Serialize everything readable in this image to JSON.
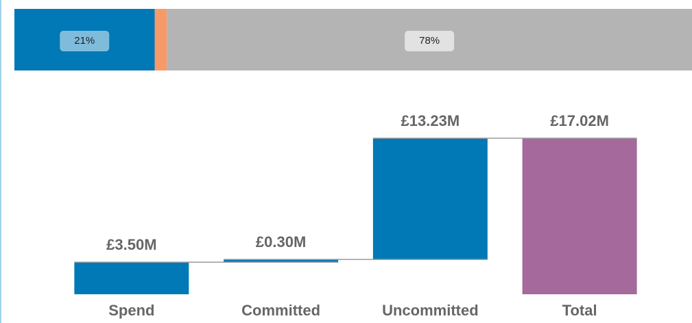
{
  "chart_data": [
    {
      "type": "stacked100",
      "values": [
        20.7,
        1.8,
        77.5
      ],
      "value_labels": [
        "21%",
        null,
        "78%"
      ],
      "colors": [
        "#0079b6",
        "#f79a6a",
        "#b4b4b4"
      ],
      "label_boxes": [
        "#7fbcdb",
        null,
        "#e2e2e2"
      ],
      "xlim": [
        0,
        100
      ]
    },
    {
      "type": "waterfall",
      "categories": [
        "Spend",
        "Committed",
        "Uncommitted",
        "Total"
      ],
      "values": [
        3.5,
        0.3,
        13.23,
        17.02
      ],
      "value_labels": [
        "£3.50M",
        "£0.30M",
        "£13.23M",
        "£17.02M"
      ],
      "colors": [
        "#0079b6",
        "#0079b6",
        "#0079b6",
        "#a5699b"
      ],
      "ylim": [
        0,
        18
      ]
    }
  ]
}
